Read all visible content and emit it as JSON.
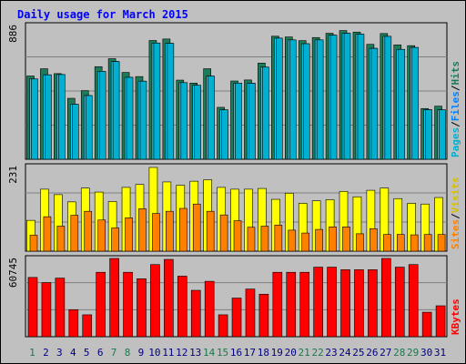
{
  "colors": {
    "background": "#c0c0c0",
    "border": "#000000",
    "grid": "#7f7f7f",
    "title": "#0000ff",
    "hits": "#1e7b57",
    "files": "#00d4ff",
    "pages": "#00b0d0",
    "visits": "#ffff00",
    "sites": "#ff8000",
    "kbytes": "#ff0000",
    "weekend_label": "#1a7a4c",
    "weekday_label": "#00007f"
  },
  "chart_data": [
    {
      "type": "bar",
      "title": "Daily usage for March 2015",
      "ylabel_max": "886",
      "legend": [
        "Pages",
        "Files",
        "Hits"
      ],
      "categories": [
        "1",
        "2",
        "3",
        "4",
        "5",
        "6",
        "7",
        "8",
        "9",
        "10",
        "11",
        "12",
        "13",
        "14",
        "15",
        "16",
        "17",
        "18",
        "19",
        "20",
        "21",
        "22",
        "23",
        "24",
        "25",
        "26",
        "27",
        "28",
        "29",
        "30",
        "31"
      ],
      "series": [
        {
          "name": "Hits",
          "values": [
            563,
            612,
            579,
            412,
            464,
            626,
            680,
            587,
            559,
            803,
            813,
            535,
            515,
            612,
            351,
            529,
            536,
            650,
            832,
            827,
            802,
            823,
            852,
            870,
            860,
            777,
            850,
            773,
            768,
            343,
            359
          ]
        },
        {
          "name": "Files",
          "values": [
            543,
            571,
            573,
            372,
            431,
            594,
            661,
            554,
            528,
            786,
            784,
            518,
            500,
            562,
            334,
            515,
            514,
            623,
            819,
            807,
            781,
            807,
            839,
            852,
            846,
            750,
            831,
            743,
            756,
            335,
            334
          ]
        },
        {
          "name": "Pages",
          "values": [
            543,
            571,
            573,
            372,
            431,
            594,
            661,
            554,
            528,
            786,
            784,
            518,
            500,
            562,
            334,
            515,
            514,
            623,
            819,
            807,
            781,
            807,
            839,
            852,
            846,
            750,
            831,
            743,
            756,
            335,
            334
          ]
        }
      ],
      "ylim": [
        0,
        886
      ]
    },
    {
      "type": "bar",
      "ylabel_max": "231",
      "legend": [
        "Sites",
        "Visits"
      ],
      "categories": [
        "1",
        "2",
        "3",
        "4",
        "5",
        "6",
        "7",
        "8",
        "9",
        "10",
        "11",
        "12",
        "13",
        "14",
        "15",
        "16",
        "17",
        "18",
        "19",
        "20",
        "21",
        "22",
        "23",
        "24",
        "25",
        "26",
        "27",
        "28",
        "29",
        "30",
        "31"
      ],
      "series": [
        {
          "name": "Visits",
          "values": [
            85,
            171,
            156,
            136,
            174,
            163,
            137,
            176,
            184,
            231,
            191,
            182,
            193,
            197,
            176,
            171,
            171,
            173,
            143,
            160,
            132,
            139,
            142,
            165,
            150,
            168,
            174,
            145,
            132,
            130,
            148
          ]
        },
        {
          "name": "Sites",
          "values": [
            44,
            95,
            69,
            99,
            110,
            86,
            64,
            92,
            117,
            104,
            110,
            118,
            130,
            110,
            100,
            84,
            66,
            69,
            72,
            58,
            50,
            60,
            67,
            67,
            48,
            62,
            46,
            46,
            45,
            46,
            46
          ]
        }
      ],
      "ylim": [
        0,
        231
      ]
    },
    {
      "type": "bar",
      "ylabel_max": "60745",
      "legend": [
        "KBytes"
      ],
      "categories": [
        "1",
        "2",
        "3",
        "4",
        "5",
        "6",
        "7",
        "8",
        "9",
        "10",
        "11",
        "12",
        "13",
        "14",
        "15",
        "16",
        "17",
        "18",
        "19",
        "20",
        "21",
        "22",
        "23",
        "24",
        "25",
        "26",
        "27",
        "28",
        "29",
        "30",
        "31"
      ],
      "series": [
        {
          "name": "KBytes",
          "values": [
            46000,
            42000,
            45500,
            21000,
            17000,
            50000,
            60745,
            50000,
            45000,
            56000,
            60000,
            47000,
            36000,
            43000,
            17000,
            30000,
            37000,
            33000,
            50000,
            50000,
            50000,
            54000,
            54000,
            52000,
            52000,
            52000,
            60745,
            54000,
            56000,
            19000,
            24000
          ]
        }
      ],
      "ylim": [
        0,
        60745
      ]
    }
  ],
  "weekend_days": [
    1,
    7,
    8,
    14,
    15,
    21,
    22,
    28,
    29
  ]
}
